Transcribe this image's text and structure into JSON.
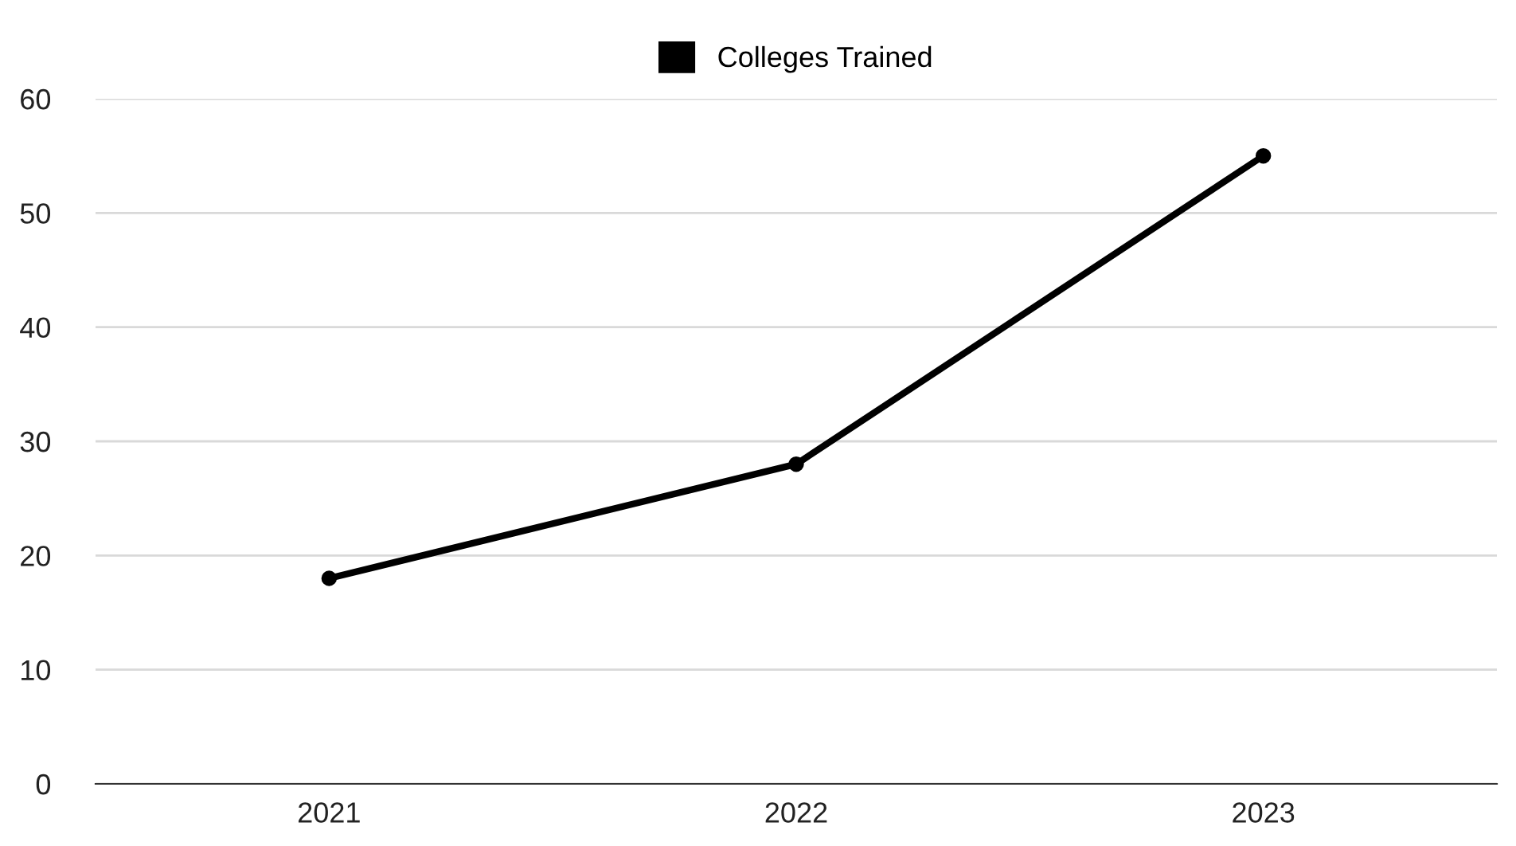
{
  "chart_data": {
    "type": "line",
    "categories": [
      "2021",
      "2022",
      "2023"
    ],
    "series": [
      {
        "name": "Colleges Trained",
        "color": "#000000",
        "values": [
          18,
          28,
          55
        ]
      }
    ],
    "ylim": [
      0,
      60
    ],
    "yticks": [
      0,
      10,
      20,
      30,
      40,
      50,
      60
    ],
    "grid": "y",
    "legend": "top",
    "marker": "circle",
    "line_style": "solid"
  }
}
